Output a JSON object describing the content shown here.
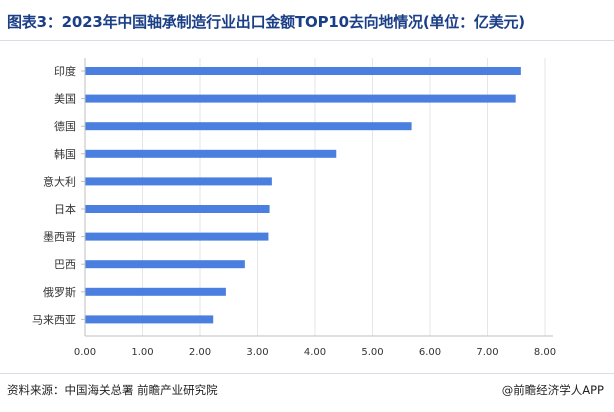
{
  "title": "图表3：2023年中国轴承制造行业出口金额TOP10去向地情况(单位：亿美元)",
  "footer": {
    "source": "资料来源：中国海关总署 前瞻产业研究院",
    "brand": "@前瞻经济学人APP"
  },
  "colors": {
    "title": "#1b3f86",
    "bar": "#4a7fe0",
    "grid": "#e6e6e6",
    "axis": "#bfbfbf",
    "text": "#333333"
  },
  "chart_data": {
    "type": "bar",
    "orientation": "horizontal",
    "categories": [
      "印度",
      "美国",
      "德国",
      "韩国",
      "意大利",
      "日本",
      "墨西哥",
      "巴西",
      "俄罗斯",
      "马来西亚"
    ],
    "values": [
      7.58,
      7.49,
      5.68,
      4.37,
      3.25,
      3.21,
      3.19,
      2.78,
      2.45,
      2.23
    ],
    "xticks": [
      "0.00",
      "1.00",
      "2.00",
      "3.00",
      "4.00",
      "5.00",
      "6.00",
      "7.00",
      "8.00"
    ],
    "xlim": [
      0,
      8
    ],
    "grid": true,
    "legend": "none"
  }
}
